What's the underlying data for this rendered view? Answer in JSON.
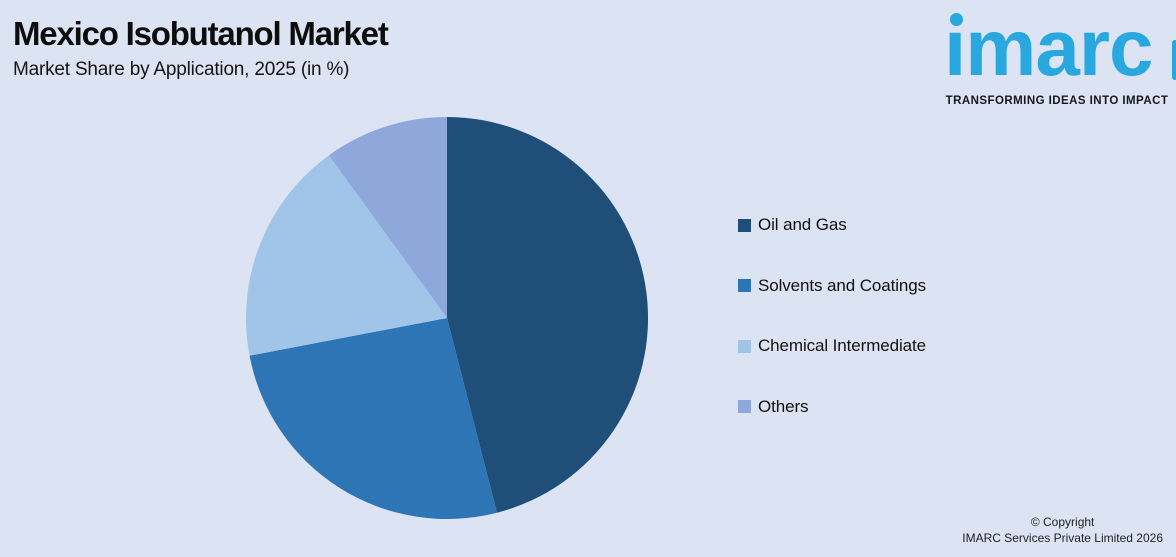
{
  "header": {
    "title": "Mexico Isobutanol Market",
    "subtitle": "Market Share by Application, 2025 (in %)"
  },
  "logo": {
    "brand": "imarc",
    "tagline": "TRANSFORMING IDEAS INTO IMPACT",
    "brand_color": "#29A8E0"
  },
  "chart_data": {
    "type": "pie",
    "title": "Mexico Isobutanol Market",
    "subtitle": "Market Share by Application, 2025 (in %)",
    "unit": "percent",
    "start_angle_deg": 0,
    "direction": "clockwise",
    "categories": [
      "Oil and Gas",
      "Solvents and Coatings",
      "Chemical Intermediate",
      "Others"
    ],
    "values": [
      46,
      26,
      18,
      10
    ],
    "colors": [
      "#1F4E79",
      "#2E75B6",
      "#A1C5E9",
      "#8FA8DC"
    ],
    "legend_position": "right",
    "data_labels": false
  },
  "footer": {
    "copyright_line1": "© Copyright",
    "copyright_line2": "IMARC Services Private Limited 2026"
  },
  "colors": {
    "background": "#DCE3F2",
    "title_text": "#0D0D0D",
    "legend_text": "#111111",
    "footer_text": "#222222",
    "tagline_text": "#17171F"
  }
}
